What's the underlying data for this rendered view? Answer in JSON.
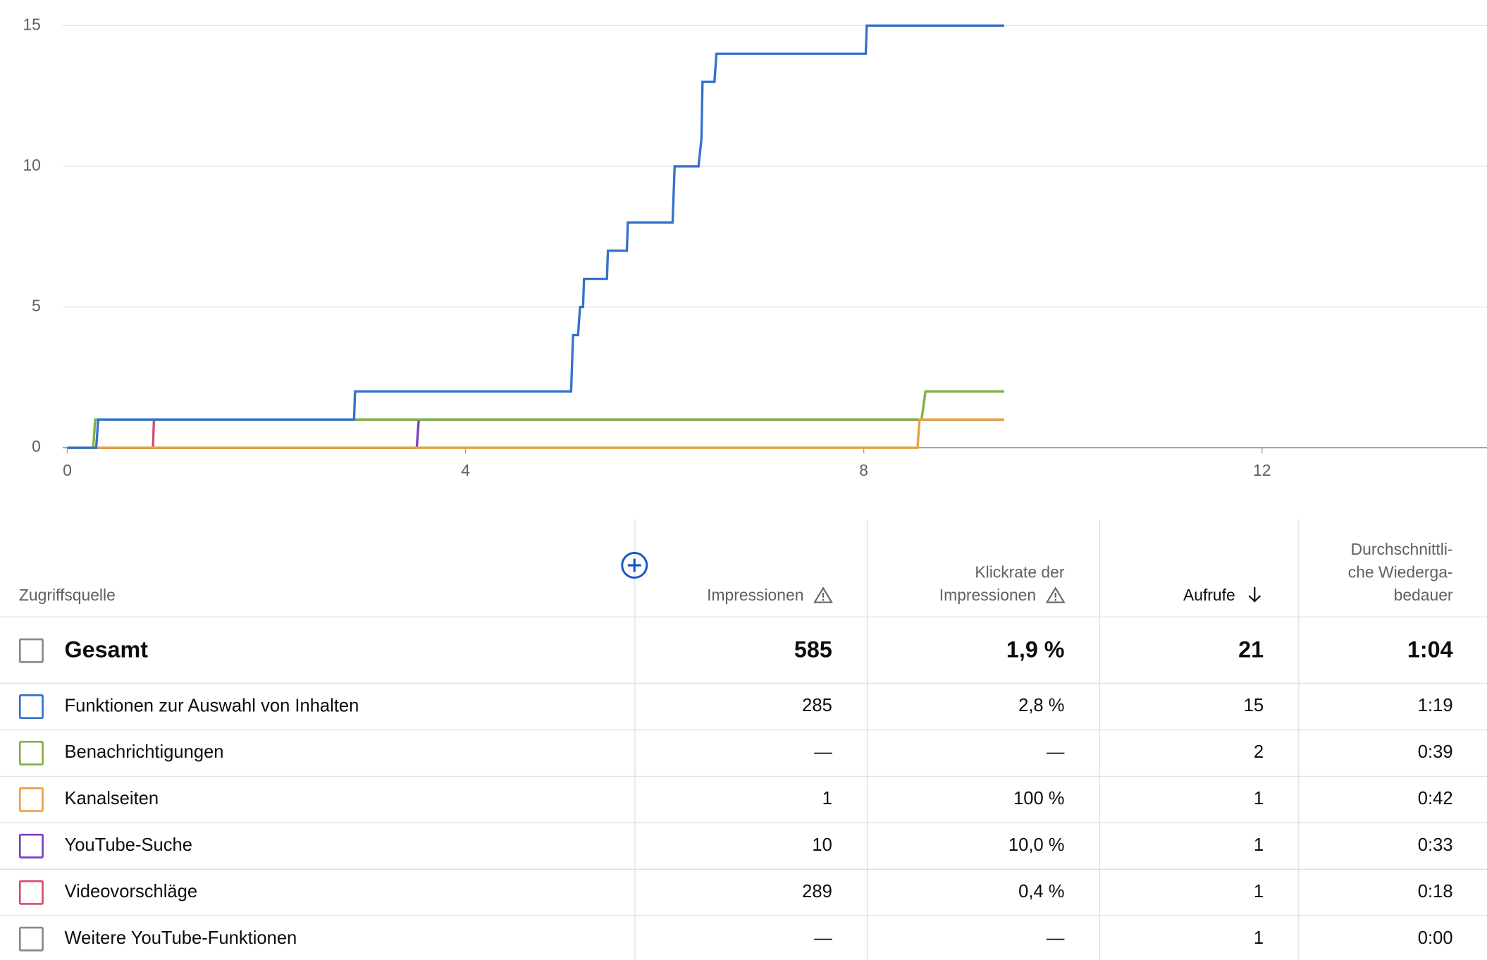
{
  "chart_data": {
    "type": "line",
    "xlim": [
      0,
      14.26
    ],
    "ylim": [
      0,
      15
    ],
    "xticks": [
      0,
      4,
      8,
      12
    ],
    "yticks": [
      0,
      5,
      10,
      15
    ],
    "grid": true,
    "series": [
      {
        "name": "Videovorschläge",
        "color": "#d44f6a",
        "x": [
          0,
          0.86,
          0.87,
          9.41
        ],
        "values": [
          0,
          0,
          1,
          1
        ]
      },
      {
        "name": "YouTube-Suche",
        "color": "#7b3fc4",
        "x": [
          0,
          3.51,
          3.53,
          9.41
        ],
        "values": [
          0,
          0,
          1,
          1
        ]
      },
      {
        "name": "Benachrichtigungen",
        "color": "#7cb342",
        "x": [
          0,
          0.26,
          0.28,
          8.58,
          8.62,
          9.41
        ],
        "values": [
          0,
          0,
          1,
          1,
          2,
          2
        ]
      },
      {
        "name": "Kanalseiten",
        "color": "#e8a33d",
        "x": [
          0,
          8.54,
          8.56,
          9.41
        ],
        "values": [
          0,
          0,
          1,
          1
        ]
      },
      {
        "name": "Funktionen zur Auswahl von Inhalten",
        "color": "#3472cc",
        "x": [
          0,
          0.29,
          0.31,
          2.88,
          2.89,
          5.06,
          5.08,
          5.13,
          5.15,
          5.18,
          5.19,
          5.42,
          5.43,
          5.62,
          5.63,
          6.08,
          6.1,
          6.34,
          6.37,
          6.38,
          6.5,
          6.52,
          8.02,
          8.03,
          9.41
        ],
        "values": [
          0,
          0,
          1,
          1,
          2,
          2,
          4,
          4,
          5,
          5,
          6,
          6,
          7,
          7,
          8,
          8,
          10,
          10,
          11,
          13,
          13,
          14,
          14,
          15,
          15
        ]
      }
    ]
  },
  "table": {
    "headers": [
      [
        "Zugriffsquelle"
      ],
      [
        "Impressionen"
      ],
      [
        "Klickrate der",
        "Impressionen"
      ],
      [
        "Aufrufe"
      ],
      [
        "Durchschnittli-",
        "che Wiederga-",
        "bedauer"
      ]
    ],
    "total": {
      "color": "#8a8a8a",
      "cells": [
        "Gesamt",
        "585",
        "1,9 %",
        "21",
        "1:04"
      ]
    },
    "rows": [
      {
        "color": "#3472cc",
        "cells": [
          "Funktionen zur Auswahl von Inhalten",
          "285",
          "2,8 %",
          "15",
          "1:19"
        ]
      },
      {
        "color": "#7cb342",
        "cells": [
          "Benachrichtigungen",
          "—",
          "—",
          "2",
          "0:39"
        ]
      },
      {
        "color": "#e8a33d",
        "cells": [
          "Kanalseiten",
          "1",
          "100 %",
          "1",
          "0:42"
        ]
      },
      {
        "color": "#7b3fc4",
        "cells": [
          "YouTube-Suche",
          "10",
          "10,0 %",
          "1",
          "0:33"
        ]
      },
      {
        "color": "#d44f6a",
        "cells": [
          "Videovorschläge",
          "289",
          "0,4 %",
          "1",
          "0:18"
        ]
      },
      {
        "color": "#8a8a8a",
        "cells": [
          "Weitere YouTube-Funktionen",
          "—",
          "—",
          "1",
          "0:00"
        ]
      }
    ]
  }
}
